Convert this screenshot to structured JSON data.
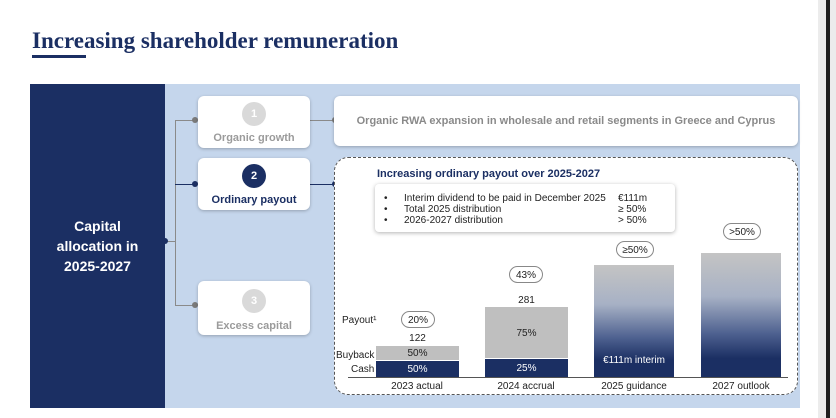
{
  "title": "Increasing shareholder remuneration",
  "left_label": "Capital\nallocation in\n2025-2027",
  "items": [
    {
      "number": "1",
      "label": "Organic growth"
    },
    {
      "number": "2",
      "label": "Ordinary payout"
    },
    {
      "number": "3",
      "label": "Excess capital"
    }
  ],
  "organic_text": "Organic RWA expansion in wholesale and retail segments in Greece and Cyprus",
  "payout": {
    "title": "Increasing ordinary payout over 2025-2027",
    "bullets": [
      {
        "text": "Interim dividend to be paid in December 2025",
        "value": "€111m"
      },
      {
        "text": "Total 2025 distribution",
        "value": "≥ 50%"
      },
      {
        "text": "2026-2027 distribution",
        "value": "> 50%"
      }
    ],
    "bullet_symbol": "•"
  },
  "chart_data": {
    "type": "bar",
    "categories": [
      "2023 actual",
      "2024 accrual",
      "2025 guidance",
      "2027 outlook"
    ],
    "totals": [
      "122",
      "281",
      "",
      ""
    ],
    "payout_labels": [
      "20%",
      "43%",
      "≥50%",
      ">50%"
    ],
    "row_labels": {
      "payout": "Payout¹",
      "buyback": "Buyback",
      "cash": "Cash"
    },
    "segments": {
      "buyback": [
        "50%",
        "75%",
        "",
        ""
      ],
      "cash": [
        "50%",
        "25%",
        "€111m interim",
        ""
      ]
    },
    "colors": {
      "buyback": "#bfbfbf",
      "cash": "#1b2f63",
      "navy": "#1b2f63"
    }
  }
}
